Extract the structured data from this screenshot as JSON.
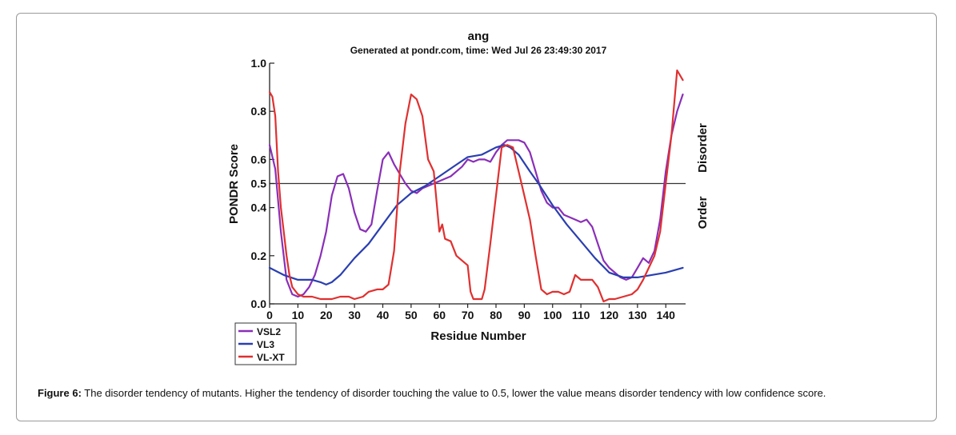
{
  "chart_data": {
    "type": "line",
    "title": "ang",
    "subtitle": "Generated at pondr.com, time: Wed Jul 26 23:49:30 2017",
    "xlabel": "Residue Number",
    "ylabel": "PONDR Score",
    "xlim": [
      0,
      147
    ],
    "ylim": [
      0,
      1.0
    ],
    "xticks": [
      0,
      10,
      20,
      30,
      40,
      50,
      60,
      70,
      80,
      90,
      100,
      110,
      120,
      130,
      140
    ],
    "yticks": [
      0.0,
      0.2,
      0.4,
      0.5,
      0.6,
      0.8,
      1.0
    ],
    "ytick_labels": [
      "0.0",
      "0.2",
      "0.4",
      "0.5",
      "0.6",
      "0.8",
      "1.0"
    ],
    "threshold": 0.5,
    "right_labels": {
      "upper": "Disorder",
      "lower": "Order"
    },
    "grid": false,
    "legend_position": "bottom-left",
    "series": [
      {
        "name": "VSL2",
        "color": "#8a2fb8",
        "points": [
          [
            0,
            0.66
          ],
          [
            2,
            0.56
          ],
          [
            4,
            0.3
          ],
          [
            6,
            0.1
          ],
          [
            8,
            0.04
          ],
          [
            10,
            0.03
          ],
          [
            12,
            0.04
          ],
          [
            14,
            0.07
          ],
          [
            16,
            0.12
          ],
          [
            18,
            0.2
          ],
          [
            20,
            0.3
          ],
          [
            22,
            0.45
          ],
          [
            24,
            0.53
          ],
          [
            26,
            0.54
          ],
          [
            28,
            0.48
          ],
          [
            30,
            0.38
          ],
          [
            32,
            0.31
          ],
          [
            34,
            0.3
          ],
          [
            36,
            0.33
          ],
          [
            38,
            0.47
          ],
          [
            40,
            0.6
          ],
          [
            42,
            0.63
          ],
          [
            44,
            0.58
          ],
          [
            46,
            0.54
          ],
          [
            48,
            0.5
          ],
          [
            50,
            0.47
          ],
          [
            52,
            0.46
          ],
          [
            54,
            0.48
          ],
          [
            56,
            0.49
          ],
          [
            58,
            0.5
          ],
          [
            60,
            0.51
          ],
          [
            62,
            0.52
          ],
          [
            64,
            0.53
          ],
          [
            66,
            0.55
          ],
          [
            68,
            0.57
          ],
          [
            70,
            0.6
          ],
          [
            72,
            0.59
          ],
          [
            74,
            0.6
          ],
          [
            76,
            0.6
          ],
          [
            78,
            0.59
          ],
          [
            80,
            0.63
          ],
          [
            82,
            0.66
          ],
          [
            84,
            0.68
          ],
          [
            86,
            0.68
          ],
          [
            88,
            0.68
          ],
          [
            90,
            0.67
          ],
          [
            92,
            0.63
          ],
          [
            94,
            0.55
          ],
          [
            96,
            0.47
          ],
          [
            98,
            0.42
          ],
          [
            100,
            0.4
          ],
          [
            102,
            0.4
          ],
          [
            104,
            0.37
          ],
          [
            106,
            0.36
          ],
          [
            108,
            0.35
          ],
          [
            110,
            0.34
          ],
          [
            112,
            0.35
          ],
          [
            114,
            0.32
          ],
          [
            116,
            0.25
          ],
          [
            118,
            0.18
          ],
          [
            120,
            0.15
          ],
          [
            122,
            0.13
          ],
          [
            124,
            0.11
          ],
          [
            126,
            0.1
          ],
          [
            128,
            0.11
          ],
          [
            130,
            0.15
          ],
          [
            132,
            0.19
          ],
          [
            134,
            0.17
          ],
          [
            136,
            0.22
          ],
          [
            138,
            0.35
          ],
          [
            140,
            0.55
          ],
          [
            142,
            0.7
          ],
          [
            144,
            0.8
          ],
          [
            146,
            0.87
          ]
        ]
      },
      {
        "name": "VL3",
        "color": "#2a3fb0",
        "points": [
          [
            0,
            0.15
          ],
          [
            5,
            0.12
          ],
          [
            10,
            0.1
          ],
          [
            15,
            0.1
          ],
          [
            18,
            0.09
          ],
          [
            20,
            0.08
          ],
          [
            22,
            0.09
          ],
          [
            25,
            0.12
          ],
          [
            30,
            0.19
          ],
          [
            35,
            0.25
          ],
          [
            40,
            0.33
          ],
          [
            45,
            0.41
          ],
          [
            50,
            0.46
          ],
          [
            55,
            0.49
          ],
          [
            60,
            0.53
          ],
          [
            65,
            0.57
          ],
          [
            70,
            0.61
          ],
          [
            75,
            0.62
          ],
          [
            80,
            0.65
          ],
          [
            83,
            0.66
          ],
          [
            85,
            0.65
          ],
          [
            88,
            0.62
          ],
          [
            92,
            0.55
          ],
          [
            95,
            0.5
          ],
          [
            100,
            0.41
          ],
          [
            105,
            0.33
          ],
          [
            110,
            0.26
          ],
          [
            115,
            0.19
          ],
          [
            120,
            0.13
          ],
          [
            125,
            0.11
          ],
          [
            130,
            0.11
          ],
          [
            135,
            0.12
          ],
          [
            140,
            0.13
          ],
          [
            146,
            0.15
          ]
        ]
      },
      {
        "name": "VL-XT",
        "color": "#e03030",
        "points": [
          [
            0,
            0.88
          ],
          [
            1,
            0.86
          ],
          [
            2,
            0.78
          ],
          [
            3,
            0.55
          ],
          [
            4,
            0.4
          ],
          [
            5,
            0.3
          ],
          [
            6,
            0.2
          ],
          [
            7,
            0.12
          ],
          [
            8,
            0.07
          ],
          [
            10,
            0.04
          ],
          [
            12,
            0.03
          ],
          [
            15,
            0.03
          ],
          [
            18,
            0.02
          ],
          [
            22,
            0.02
          ],
          [
            25,
            0.03
          ],
          [
            28,
            0.03
          ],
          [
            30,
            0.02
          ],
          [
            33,
            0.03
          ],
          [
            35,
            0.05
          ],
          [
            38,
            0.06
          ],
          [
            40,
            0.06
          ],
          [
            42,
            0.08
          ],
          [
            44,
            0.22
          ],
          [
            46,
            0.55
          ],
          [
            48,
            0.75
          ],
          [
            50,
            0.87
          ],
          [
            52,
            0.85
          ],
          [
            54,
            0.78
          ],
          [
            56,
            0.6
          ],
          [
            58,
            0.55
          ],
          [
            60,
            0.3
          ],
          [
            61,
            0.33
          ],
          [
            62,
            0.27
          ],
          [
            64,
            0.26
          ],
          [
            66,
            0.2
          ],
          [
            68,
            0.18
          ],
          [
            70,
            0.16
          ],
          [
            71,
            0.05
          ],
          [
            72,
            0.02
          ],
          [
            74,
            0.02
          ],
          [
            75,
            0.02
          ],
          [
            76,
            0.06
          ],
          [
            78,
            0.25
          ],
          [
            80,
            0.45
          ],
          [
            82,
            0.65
          ],
          [
            84,
            0.66
          ],
          [
            86,
            0.65
          ],
          [
            88,
            0.55
          ],
          [
            90,
            0.45
          ],
          [
            92,
            0.35
          ],
          [
            94,
            0.2
          ],
          [
            96,
            0.06
          ],
          [
            98,
            0.04
          ],
          [
            100,
            0.05
          ],
          [
            102,
            0.05
          ],
          [
            104,
            0.04
          ],
          [
            106,
            0.05
          ],
          [
            108,
            0.12
          ],
          [
            110,
            0.1
          ],
          [
            112,
            0.1
          ],
          [
            114,
            0.1
          ],
          [
            116,
            0.07
          ],
          [
            118,
            0.01
          ],
          [
            120,
            0.02
          ],
          [
            122,
            0.02
          ],
          [
            125,
            0.03
          ],
          [
            128,
            0.04
          ],
          [
            130,
            0.06
          ],
          [
            132,
            0.1
          ],
          [
            134,
            0.15
          ],
          [
            136,
            0.2
          ],
          [
            138,
            0.3
          ],
          [
            140,
            0.5
          ],
          [
            142,
            0.7
          ],
          [
            144,
            0.97
          ],
          [
            146,
            0.93
          ]
        ]
      }
    ]
  },
  "caption": {
    "label": "Figure 6:",
    "text": " The disorder tendency of mutants. Higher the tendency of disorder touching the value to 0.5, lower the value means disorder tendency with low confidence score."
  }
}
